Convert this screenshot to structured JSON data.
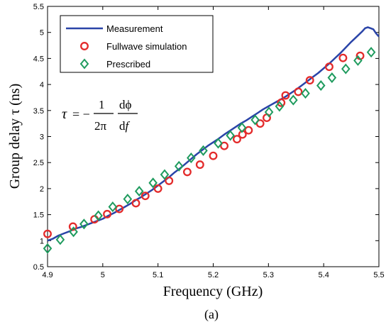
{
  "chart_data": {
    "type": "line",
    "title": "",
    "xlabel": "Frequency (GHz)",
    "ylabel": "Group delay τ (ns)",
    "caption": "(a)",
    "formula": "τ = − (1/2π) dφ/df",
    "xlim": [
      4.9,
      5.5
    ],
    "ylim": [
      0.5,
      5.5
    ],
    "x_ticks": [
      "4.9",
      "5",
      "5.1",
      "5.2",
      "5.3",
      "5.4",
      "5.5"
    ],
    "y_ticks": [
      "0.5",
      "1",
      "1.5",
      "2",
      "2.5",
      "3",
      "3.5",
      "4",
      "4.5",
      "5",
      "5.5"
    ],
    "grid": false,
    "legend_position": "top-left",
    "series": [
      {
        "name": "Measurement",
        "style": "line",
        "color": "#2a44a8",
        "x": [
          4.9,
          4.91,
          4.92,
          4.93,
          4.94,
          4.95,
          4.96,
          4.97,
          4.98,
          4.99,
          5.0,
          5.01,
          5.02,
          5.03,
          5.04,
          5.05,
          5.06,
          5.07,
          5.08,
          5.09,
          5.1,
          5.11,
          5.12,
          5.13,
          5.14,
          5.15,
          5.16,
          5.17,
          5.18,
          5.19,
          5.2,
          5.21,
          5.22,
          5.23,
          5.24,
          5.25,
          5.26,
          5.27,
          5.28,
          5.29,
          5.3,
          5.31,
          5.32,
          5.33,
          5.34,
          5.35,
          5.36,
          5.37,
          5.38,
          5.39,
          5.4,
          5.41,
          5.42,
          5.43,
          5.44,
          5.45,
          5.46,
          5.47,
          5.475,
          5.48,
          5.485,
          5.49,
          5.495,
          5.5
        ],
        "y": [
          1.0,
          1.04,
          1.1,
          1.14,
          1.18,
          1.23,
          1.26,
          1.3,
          1.34,
          1.38,
          1.42,
          1.48,
          1.53,
          1.59,
          1.65,
          1.71,
          1.78,
          1.84,
          1.91,
          1.98,
          2.06,
          2.14,
          2.22,
          2.31,
          2.39,
          2.48,
          2.57,
          2.66,
          2.74,
          2.82,
          2.89,
          2.96,
          3.04,
          3.11,
          3.18,
          3.25,
          3.31,
          3.38,
          3.45,
          3.52,
          3.58,
          3.64,
          3.7,
          3.76,
          3.83,
          3.9,
          3.98,
          4.06,
          4.14,
          4.22,
          4.31,
          4.4,
          4.5,
          4.6,
          4.71,
          4.82,
          4.92,
          5.02,
          5.08,
          5.1,
          5.08,
          5.06,
          4.98,
          4.92
        ]
      },
      {
        "name": "Fullwave simulation",
        "style": "circle",
        "color": "#e32b2b",
        "x": [
          4.9,
          4.946,
          4.985,
          5.008,
          5.03,
          5.06,
          5.077,
          5.1,
          5.12,
          5.153,
          5.176,
          5.2,
          5.22,
          5.243,
          5.253,
          5.264,
          5.285,
          5.297,
          5.323,
          5.331,
          5.354,
          5.375,
          5.41,
          5.435,
          5.466
        ],
        "y": [
          1.13,
          1.27,
          1.41,
          1.51,
          1.61,
          1.72,
          1.86,
          2.0,
          2.15,
          2.32,
          2.46,
          2.63,
          2.82,
          2.95,
          3.04,
          3.12,
          3.25,
          3.36,
          3.65,
          3.79,
          3.86,
          4.08,
          4.34,
          4.51,
          4.55
        ]
      },
      {
        "name": "Prescribed",
        "style": "diamond",
        "color": "#1f9b5e",
        "x": [
          4.9,
          4.923,
          4.947,
          4.966,
          4.992,
          5.018,
          5.045,
          5.066,
          5.091,
          5.112,
          5.138,
          5.16,
          5.182,
          5.209,
          5.231,
          5.252,
          5.276,
          5.301,
          5.32,
          5.345,
          5.367,
          5.395,
          5.415,
          5.44,
          5.462,
          5.486
        ],
        "y": [
          0.85,
          1.02,
          1.17,
          1.32,
          1.48,
          1.65,
          1.8,
          1.95,
          2.11,
          2.27,
          2.43,
          2.59,
          2.73,
          2.87,
          3.02,
          3.17,
          3.32,
          3.47,
          3.58,
          3.7,
          3.83,
          3.98,
          4.13,
          4.3,
          4.46,
          4.62
        ]
      }
    ]
  }
}
